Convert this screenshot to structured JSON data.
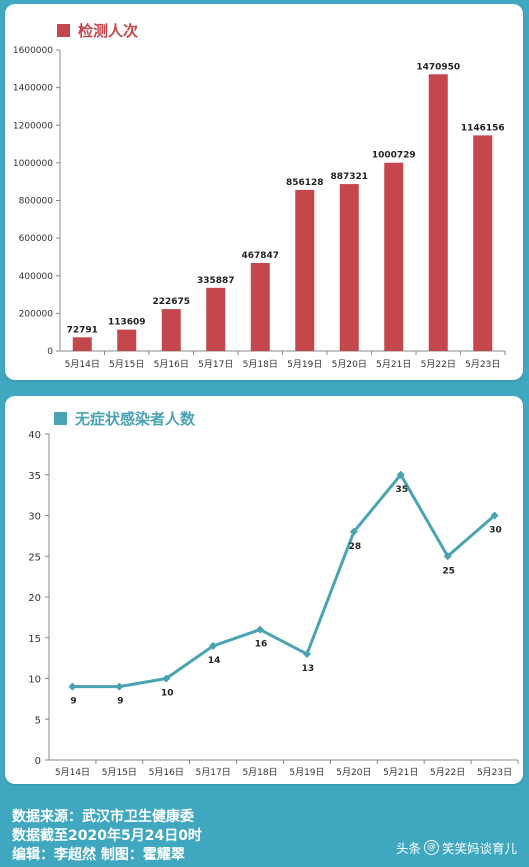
{
  "chart_data": [
    {
      "type": "bar",
      "legend": "检测人次",
      "color": "#c4474c",
      "categories": [
        "5月14日",
        "5月15日",
        "5月16日",
        "5月17日",
        "5月18日",
        "5月19日",
        "5月20日",
        "5月21日",
        "5月22日",
        "5月23日"
      ],
      "values": [
        72791,
        113609,
        222675,
        335887,
        467847,
        856128,
        887321,
        1000729,
        1470950,
        1146156
      ],
      "ylim": [
        0,
        1600000
      ],
      "yticks": [
        0,
        200000,
        400000,
        600000,
        800000,
        1000000,
        1200000,
        1400000,
        1600000
      ]
    },
    {
      "type": "line",
      "legend": "无症状感染者人数",
      "color": "#4aa3b4",
      "categories": [
        "5月14日",
        "5月15日",
        "5月16日",
        "5月17日",
        "5月18日",
        "5月19日",
        "5月20日",
        "5月21日",
        "5月22日",
        "5月23日"
      ],
      "values": [
        9,
        9,
        10,
        14,
        16,
        13,
        28,
        35,
        25,
        30
      ],
      "ylim": [
        0,
        40
      ],
      "yticks": [
        0,
        5,
        10,
        15,
        20,
        25,
        30,
        35,
        40
      ]
    }
  ],
  "footer": {
    "line1": "数据来源：武汉市卫生健康委",
    "line2": "数据截至2020年5月24日0时",
    "line3": "编辑：李超然   制图：霍耀翠"
  },
  "watermark": {
    "prefix": "头条",
    "at": "@",
    "name": "笑笑妈谈育儿"
  }
}
